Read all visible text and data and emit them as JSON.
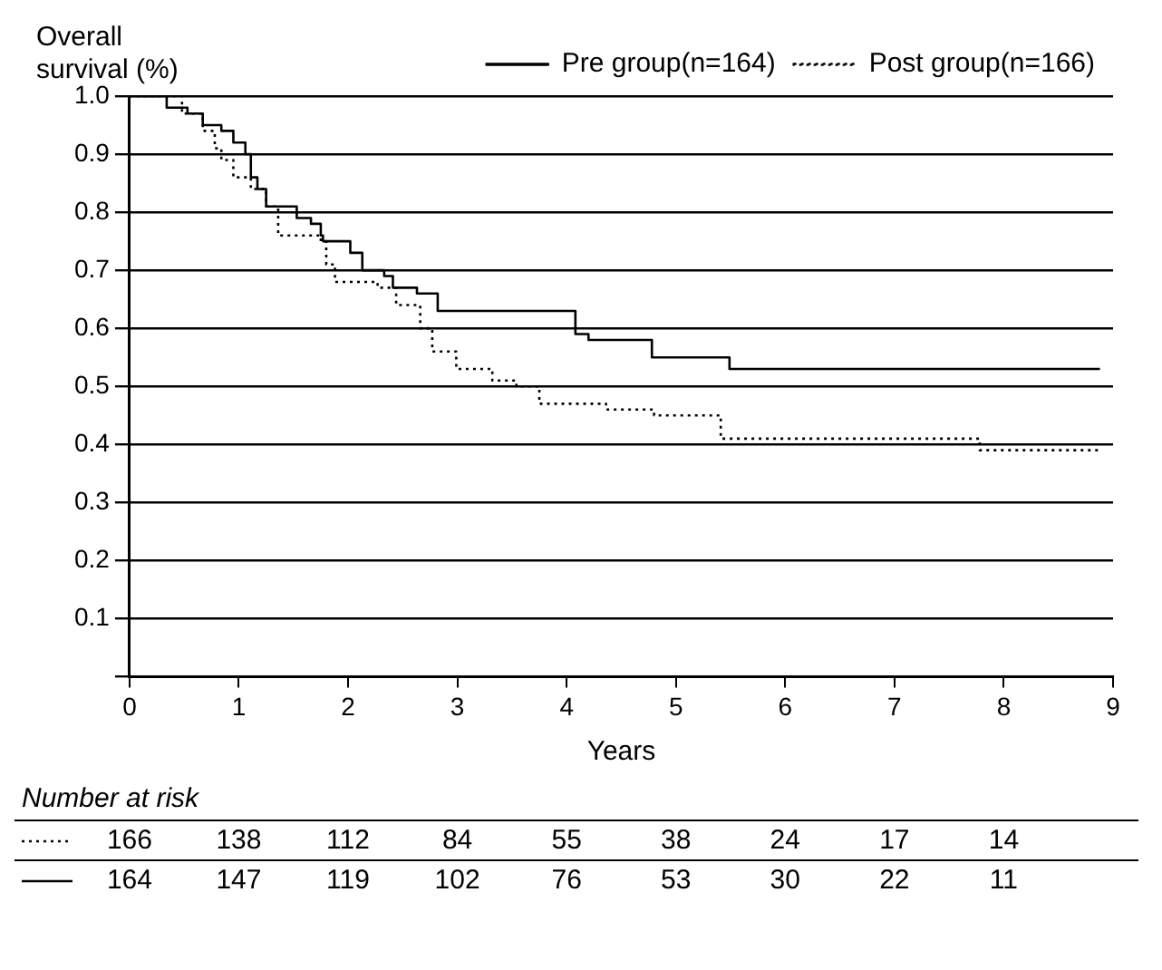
{
  "chart_data": {
    "type": "step",
    "ylabel": "Overall\nsurvival (%)",
    "xlabel": "Years",
    "series": [
      {
        "name": "Pre group(n=164)",
        "color": "#000000",
        "line_style": "solid",
        "x": [
          0,
          0.34,
          0.53,
          0.67,
          0.84,
          0.95,
          1.06,
          1.11,
          1.17,
          1.25,
          1.53,
          1.66,
          1.75,
          1.77,
          2.02,
          2.13,
          2.33,
          2.41,
          2.63,
          2.82,
          4.08,
          4.2,
          4.78,
          5.49,
          8.88
        ],
        "values": [
          1.0,
          0.98,
          0.97,
          0.95,
          0.94,
          0.92,
          0.9,
          0.86,
          0.84,
          0.81,
          0.79,
          0.78,
          0.76,
          0.75,
          0.73,
          0.7,
          0.69,
          0.67,
          0.66,
          0.63,
          0.59,
          0.58,
          0.55,
          0.53,
          0.53
        ]
      },
      {
        "name": "Post group(n=166)",
        "color": "#000000",
        "line_style": "dotted",
        "x": [
          0,
          0.48,
          0.67,
          0.78,
          0.84,
          0.95,
          1.11,
          1.25,
          1.36,
          1.75,
          1.8,
          1.88,
          2.27,
          2.44,
          2.66,
          2.77,
          2.99,
          3.32,
          3.54,
          3.75,
          4.36,
          4.8,
          5.41,
          7.78,
          8.88
        ],
        "values": [
          1.0,
          0.97,
          0.94,
          0.91,
          0.89,
          0.86,
          0.84,
          0.81,
          0.76,
          0.75,
          0.71,
          0.68,
          0.67,
          0.64,
          0.6,
          0.56,
          0.53,
          0.51,
          0.5,
          0.47,
          0.46,
          0.45,
          0.41,
          0.39,
          0.39
        ]
      }
    ],
    "xlim": [
      0,
      9
    ],
    "xticks": [
      0,
      1,
      2,
      3,
      4,
      5,
      6,
      7,
      8,
      9
    ],
    "ylim": [
      0,
      1.0
    ],
    "yticks": [
      {
        "value": 0,
        "label": null
      },
      0.1,
      0.2,
      0.3,
      0.4,
      0.5,
      0.6,
      0.7,
      0.8,
      0.9,
      {
        "value": 1.0,
        "label": "1.0"
      }
    ],
    "grid": "y",
    "legend": "top right",
    "annotations": [
      "Number at risk",
      "166 138 112 84 55 38 24 17 14",
      "164 147 119 102 76 53 30 22 11"
    ]
  }
}
